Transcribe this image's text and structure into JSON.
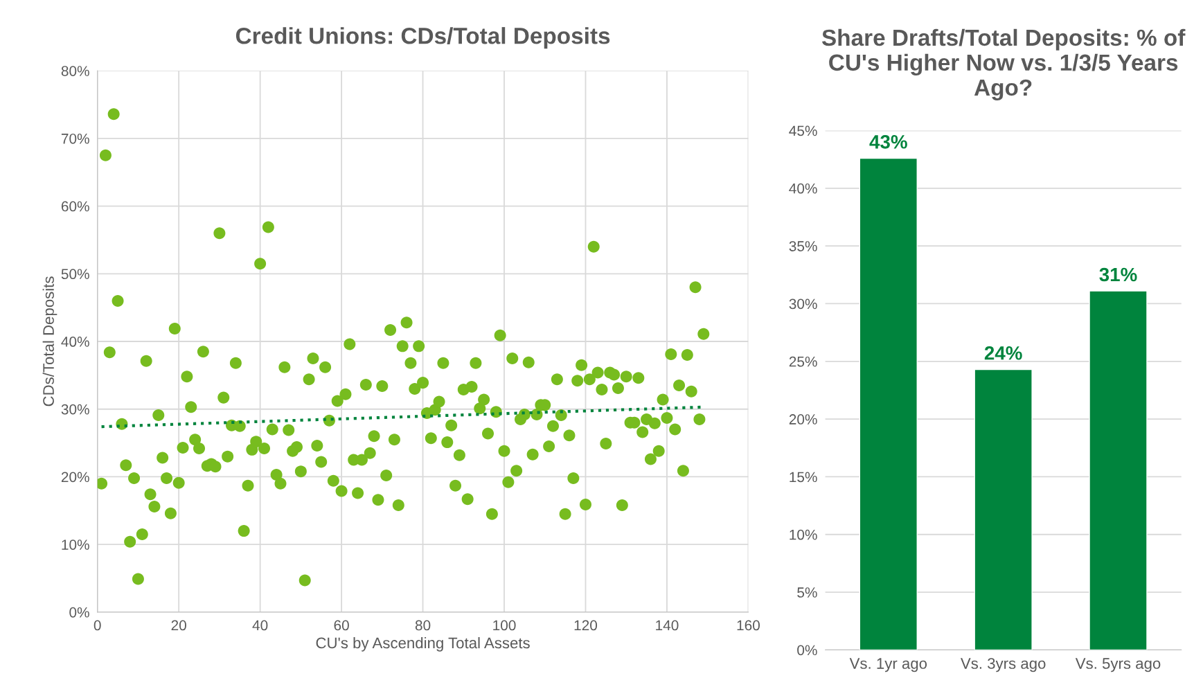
{
  "chart_data": [
    {
      "type": "scatter",
      "title": "Credit Unions: CDs/Total Deposits",
      "xlabel": "CU's by Ascending Total Assets",
      "ylabel": "CDs/Total Deposits",
      "xlim": [
        0,
        160
      ],
      "xticks": [
        0,
        20,
        40,
        60,
        80,
        100,
        120,
        140,
        160
      ],
      "ylim": [
        0,
        80
      ],
      "yticks": [
        {
          "value": 0,
          "label": "0%"
        },
        {
          "value": 10,
          "label": "10%"
        },
        {
          "value": 20,
          "label": "20%"
        },
        {
          "value": 30,
          "label": "30%"
        },
        {
          "value": 40,
          "label": "40%"
        },
        {
          "value": 50,
          "label": "50%"
        },
        {
          "value": 60,
          "label": "60%"
        },
        {
          "value": 70,
          "label": "70%"
        },
        {
          "value": 80,
          "label": "80%"
        }
      ],
      "grid": true,
      "marker": "circle",
      "series": [
        {
          "type": "scatter",
          "color": "#77bc1f",
          "x": [
            1,
            2,
            3,
            4,
            5,
            6,
            7,
            8,
            9,
            10,
            11,
            12,
            13,
            14,
            15,
            16,
            17,
            18,
            19,
            20,
            21,
            22,
            23,
            24,
            25,
            26,
            27,
            28,
            29,
            30,
            31,
            32,
            33,
            34,
            35,
            36,
            37,
            38,
            39,
            40,
            41,
            42,
            43,
            44,
            45,
            46,
            47,
            48,
            49,
            50,
            51,
            52,
            53,
            54,
            55,
            56,
            57,
            58,
            59,
            60,
            61,
            62,
            63,
            64,
            65,
            66,
            67,
            68,
            69,
            70,
            71,
            72,
            73,
            74,
            75,
            76,
            77,
            78,
            79,
            80,
            81,
            82,
            83,
            84,
            85,
            86,
            87,
            88,
            89,
            90,
            91,
            92,
            93,
            94,
            95,
            96,
            97,
            98,
            99,
            100,
            101,
            102,
            103,
            104,
            105,
            106,
            107,
            108,
            109,
            110,
            111,
            112,
            113,
            114,
            115,
            116,
            117,
            118,
            119,
            120,
            121,
            122,
            123,
            124,
            125,
            126,
            127,
            128,
            129,
            130,
            131,
            132,
            133,
            134,
            135,
            136,
            137,
            138,
            139,
            140,
            141,
            142,
            143,
            144,
            145,
            146,
            147,
            148,
            149
          ],
          "values": [
            19.0,
            67.5,
            38.4,
            73.6,
            46.0,
            27.8,
            21.7,
            10.4,
            19.8,
            4.9,
            11.5,
            37.1,
            17.4,
            15.6,
            29.1,
            22.8,
            19.8,
            14.6,
            41.9,
            19.1,
            24.3,
            34.8,
            30.3,
            25.5,
            24.2,
            38.5,
            21.6,
            21.9,
            21.5,
            56.0,
            31.7,
            23.0,
            27.6,
            36.8,
            27.5,
            12.0,
            18.7,
            24.0,
            25.2,
            51.5,
            24.2,
            56.9,
            27.0,
            20.3,
            19.0,
            36.2,
            26.9,
            23.8,
            24.4,
            20.8,
            4.7,
            34.4,
            37.5,
            24.6,
            22.2,
            36.2,
            28.3,
            19.4,
            31.2,
            17.9,
            32.2,
            39.6,
            22.5,
            17.6,
            22.5,
            33.6,
            23.5,
            26.0,
            16.6,
            33.4,
            20.2,
            41.7,
            25.5,
            15.8,
            39.3,
            42.8,
            36.8,
            33.0,
            39.3,
            33.9,
            29.4,
            25.7,
            29.9,
            31.1,
            36.8,
            25.1,
            27.6,
            18.7,
            23.2,
            32.9,
            16.7,
            33.3,
            36.8,
            30.1,
            31.4,
            26.4,
            14.5,
            29.6,
            40.9,
            23.8,
            19.2,
            37.5,
            20.9,
            28.5,
            29.2,
            36.9,
            23.3,
            29.2,
            30.6,
            30.6,
            24.5,
            27.5,
            34.4,
            29.1,
            14.5,
            26.1,
            19.8,
            34.2,
            36.5,
            15.9,
            34.4,
            54.0,
            35.4,
            32.9,
            24.9,
            35.4,
            35.1,
            33.1,
            15.8,
            34.8,
            28.0,
            28.0,
            34.6,
            26.6,
            28.5,
            22.6,
            27.9,
            23.8,
            31.4,
            28.7,
            38.1,
            27.0,
            33.5,
            20.9,
            38.0,
            32.6,
            48.0,
            28.5,
            41.1
          ]
        },
        {
          "type": "line",
          "color": "#00843d",
          "line_style": "dotted",
          "marker": "none",
          "x": [
            1,
            149
          ],
          "values": [
            27.4,
            30.3
          ]
        }
      ]
    },
    {
      "type": "bar",
      "title": "Share Drafts/Total Deposits: % of CU's Higher Now vs. 1/3/5 Years Ago?",
      "categories": [
        "Vs. 1yr ago",
        "Vs. 3yrs ago",
        "Vs. 5yrs ago"
      ],
      "values": [
        42.6,
        24.3,
        31.1
      ],
      "color": "#00843d",
      "value_labels": [
        "43%",
        "24%",
        "31%"
      ],
      "ylim": [
        0,
        45
      ],
      "yticks": [
        {
          "value": 0,
          "label": "0%"
        },
        {
          "value": 5,
          "label": "5%"
        },
        {
          "value": 10,
          "label": "10%"
        },
        {
          "value": 15,
          "label": "15%"
        },
        {
          "value": 20,
          "label": "20%"
        },
        {
          "value": 25,
          "label": "25%"
        },
        {
          "value": 30,
          "label": "30%"
        },
        {
          "value": 35,
          "label": "35%"
        },
        {
          "value": 40,
          "label": "40%"
        },
        {
          "value": 45,
          "label": "45%"
        }
      ],
      "grid": "y"
    }
  ]
}
